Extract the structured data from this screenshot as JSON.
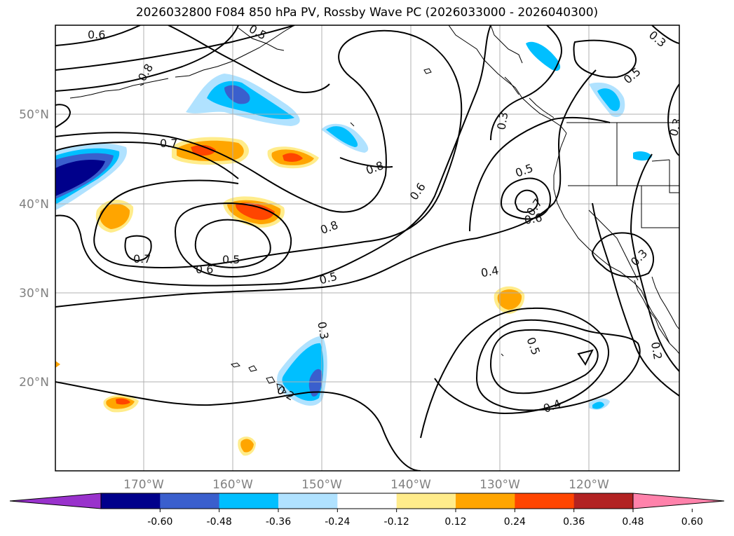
{
  "title": "2026032800 F084 850 hPa PV, Rossby Wave PC (2026033000 - 2026040300)",
  "map": {
    "lon_range": [
      -180,
      -110
    ],
    "lat_range": [
      10,
      60
    ],
    "lat_labels": [
      "20°N",
      "30°N",
      "40°N",
      "50°N"
    ],
    "lon_labels": [
      "170°W",
      "160°W",
      "150°W",
      "140°W",
      "130°W",
      "120°W"
    ],
    "grid": true,
    "coastline_color": "#000000",
    "contour_color": "#000000"
  },
  "contour_labels": [
    "0.6",
    "0.8",
    "0.7",
    "0.6",
    "0.5",
    "0.7",
    "0.8",
    "0.5",
    "0.8",
    "0.6",
    "0.3",
    "0.5",
    "0.7",
    "0.6",
    "0.4",
    "0.5",
    "0.3",
    "0.3",
    "0.5",
    "0.4",
    "0.2",
    "0.3",
    "0.2",
    "0.3",
    "0.5"
  ],
  "colorbar": {
    "ticks": [
      "-0.60",
      "-0.48",
      "-0.36",
      "-0.24",
      "-0.12",
      "0.12",
      "0.24",
      "0.36",
      "0.48",
      "0.60"
    ],
    "colors": [
      "#9932cc",
      "#00008b",
      "#3a5fcd",
      "#00bfff",
      "#b0e2ff",
      "#ffffff",
      "#ffec8b",
      "#ffa500",
      "#ff4500",
      "#b22222",
      "#ff82ab"
    ],
    "extend": "both"
  }
}
